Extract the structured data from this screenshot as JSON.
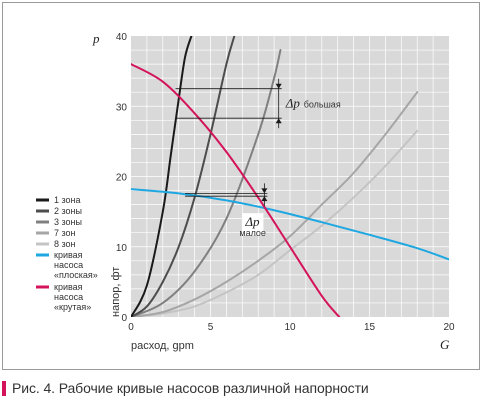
{
  "colors": {
    "plot_bg": "#d9d9d9",
    "grid": "#ffffff",
    "text": "#333333",
    "accent": "#d4145a",
    "flat": "#1ea7e1",
    "caption_bar": "#d4145a"
  },
  "caption": "Рис. 4. Рабочие кривые насосов различной напорности",
  "chart_data": {
    "type": "line",
    "xlabel": "расход, gpm",
    "xlabel_symbol": "G",
    "ylabel": "напор, фт",
    "ylabel_symbol": "p",
    "xlim": [
      0,
      20
    ],
    "ylim": [
      0,
      40
    ],
    "xticks": [
      0,
      5,
      10,
      15,
      20
    ],
    "yticks": [
      0,
      10,
      20,
      30,
      40
    ],
    "grid": true,
    "legend_position": "left",
    "series": [
      {
        "name": "1 зона",
        "color": "#1a1a1a",
        "x": [
          0,
          1,
          2,
          2.5,
          3,
          3.4,
          3.8
        ],
        "y": [
          0,
          4.5,
          15,
          23,
          31,
          37,
          40
        ]
      },
      {
        "name": "2 зоны",
        "color": "#4d4d4d",
        "x": [
          0,
          1,
          2,
          3,
          4,
          5,
          6,
          6.5
        ],
        "y": [
          0,
          1.5,
          5,
          10,
          17,
          26,
          36,
          40
        ]
      },
      {
        "name": "3 зоны",
        "color": "#808080",
        "x": [
          0,
          2,
          4,
          6,
          8,
          9,
          9.4
        ],
        "y": [
          0,
          2,
          6.5,
          14,
          26,
          34,
          38
        ]
      },
      {
        "name": "7 зон",
        "color": "#a6a6a6",
        "x": [
          0,
          2,
          4,
          6,
          8,
          10,
          12,
          14,
          16,
          18
        ],
        "y": [
          0,
          0.7,
          2.5,
          5,
          8,
          11.5,
          16,
          20.5,
          26,
          32
        ]
      },
      {
        "name": "8 зон",
        "color": "#c4c4c4",
        "x": [
          0,
          2,
          4,
          6,
          8,
          10,
          12,
          14,
          16,
          18
        ],
        "y": [
          0,
          0.5,
          1.5,
          3.5,
          6,
          9.5,
          13,
          17,
          21.5,
          26.5
        ]
      },
      {
        "name": "кривая насоса «плоская»",
        "color": "#1ea7e1",
        "x": [
          0,
          3,
          6,
          9,
          12,
          15,
          18,
          20
        ],
        "y": [
          18.2,
          17.6,
          16.6,
          15.2,
          13.5,
          11.7,
          9.8,
          8.2
        ]
      },
      {
        "name": "кривая насоса «крутая»",
        "color": "#d4145a",
        "x": [
          0,
          2,
          4,
          6,
          8,
          10,
          12,
          13.1
        ],
        "y": [
          36,
          33.5,
          29,
          23.5,
          17,
          10,
          3,
          0
        ]
      }
    ],
    "annotations": {
      "dp_large": {
        "symbol": "Δp",
        "text": "большая",
        "x_start": 2.8,
        "x_end": 9.1,
        "y_top": 32.5,
        "y_bottom": 28.3
      },
      "dp_small": {
        "symbol": "Δp",
        "text": "малое",
        "x_start": 3.4,
        "x_end": 8.2,
        "y_top": 17.6,
        "y_bottom": 17.2
      }
    }
  }
}
